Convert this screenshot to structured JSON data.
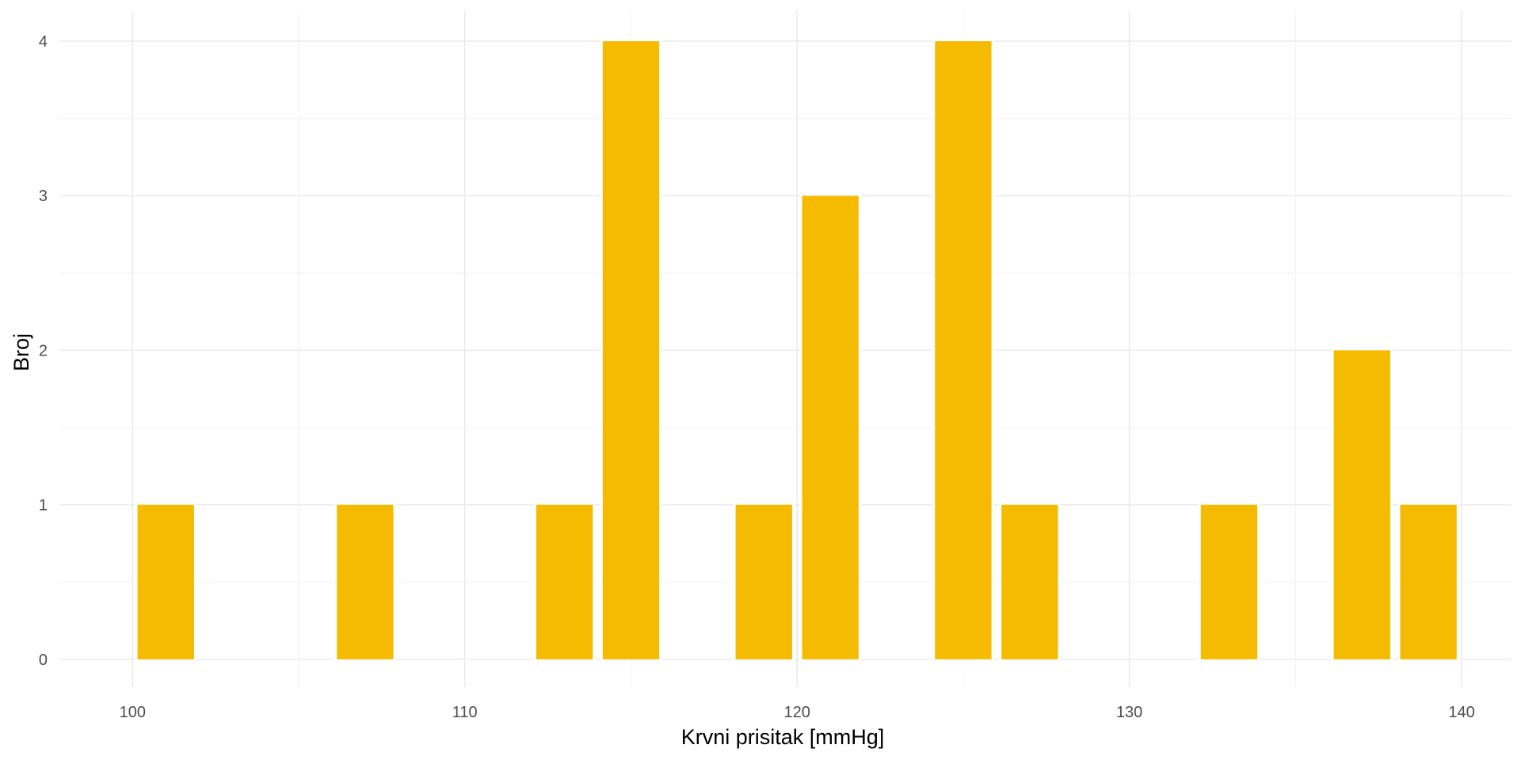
{
  "chart_data": {
    "type": "bar",
    "title": "",
    "xlabel": "Krvni prisitak [mmHg]",
    "ylabel": "Broj",
    "x": [
      101,
      107,
      113,
      115,
      119,
      121,
      125,
      127,
      133,
      137,
      139
    ],
    "values": [
      1,
      1,
      1,
      4,
      1,
      3,
      4,
      1,
      1,
      2,
      1
    ],
    "bar_width": 1.7,
    "xlim": [
      97.8,
      141.5
    ],
    "ylim": [
      -0.18,
      4.2
    ],
    "x_ticks": [
      100,
      110,
      120,
      130,
      140
    ],
    "x_tick_labels": [
      "100",
      "110",
      "120",
      "130",
      "140"
    ],
    "x_minor_ticks": [
      105,
      115,
      125,
      135
    ],
    "y_ticks": [
      0,
      1,
      2,
      3,
      4
    ],
    "y_tick_labels": [
      "0",
      "1",
      "2",
      "3",
      "4"
    ],
    "y_minor_ticks": [
      0.5,
      1.5,
      2.5,
      3.5
    ],
    "grid": true,
    "legend": "none",
    "colors": {
      "bar": "#F4BB00",
      "background": "#FFFFFF",
      "grid": "#EBEBEB"
    }
  }
}
